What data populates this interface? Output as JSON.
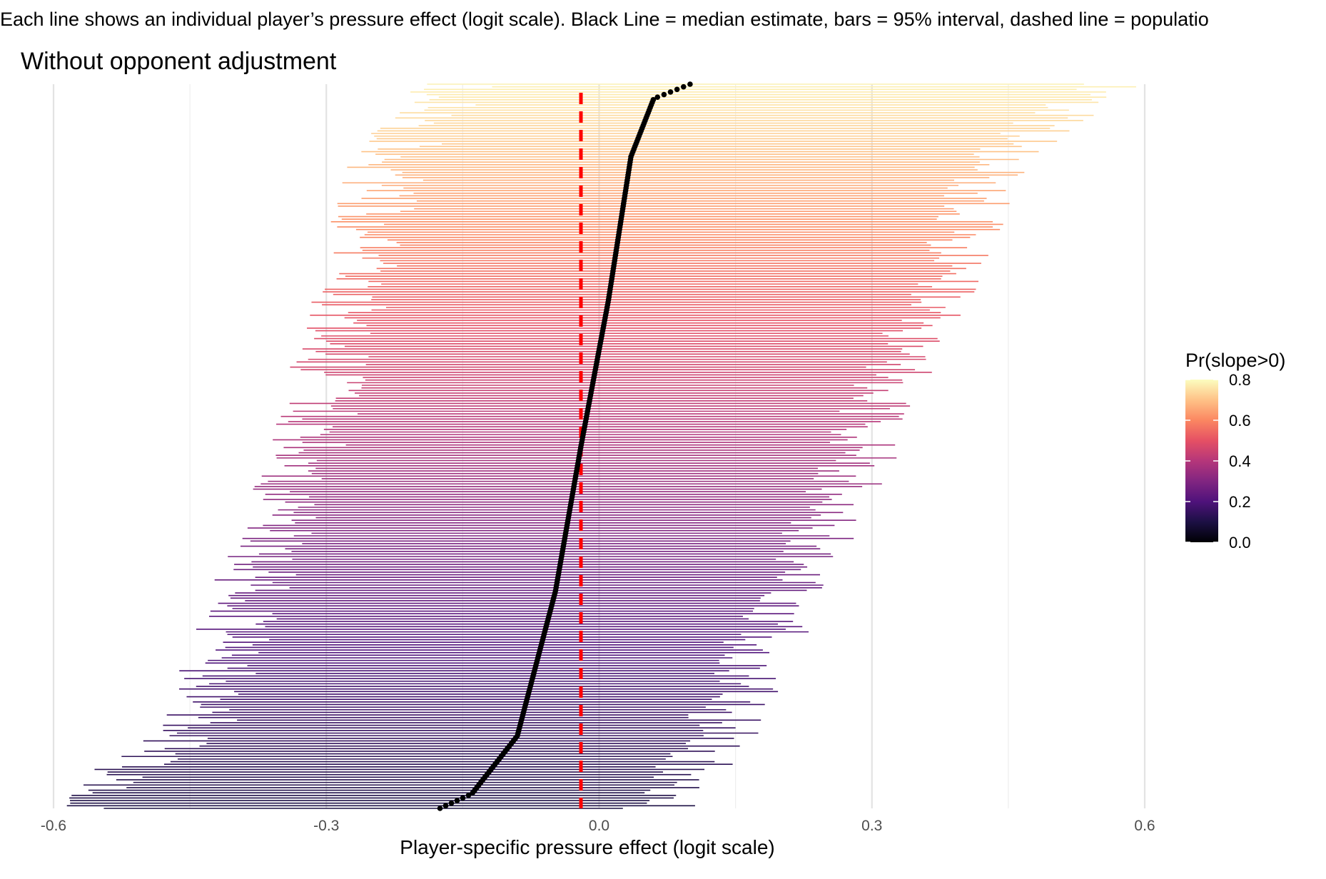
{
  "chart_data": {
    "type": "forest-interval",
    "subtitle": "Each line shows an individual player’s pressure effect (logit scale). Black Line = median estimate, bars = 95% interval, dashed line = populatio",
    "title": "Without opponent adjustment",
    "xlabel": "Player-specific pressure effect (logit scale)",
    "ylabel": "",
    "xlim": [
      -0.6,
      0.6
    ],
    "x_ticks": [
      -0.6,
      -0.3,
      0.0,
      0.3,
      0.6
    ],
    "x_tick_labels": [
      "-0.6",
      "-0.3",
      "0.0",
      "0.3",
      "0.6"
    ],
    "grid": "vertical major and minor lines",
    "population_mean": -0.02,
    "population_line_color": "#ff0000",
    "median_color": "#000000",
    "n_players": 280,
    "order": "sorted by median estimate, lowest at bottom",
    "series_profile": {
      "median_quantiles": [
        [
          0.0,
          -0.175
        ],
        [
          0.02,
          -0.14
        ],
        [
          0.1,
          -0.09
        ],
        [
          0.3,
          -0.048
        ],
        [
          0.5,
          -0.02
        ],
        [
          0.7,
          0.01
        ],
        [
          0.9,
          0.035
        ],
        [
          0.98,
          0.06
        ],
        [
          1.0,
          0.1
        ]
      ],
      "lower_bound_quantiles": [
        [
          0.0,
          -0.58
        ],
        [
          0.1,
          -0.45
        ],
        [
          0.5,
          -0.32
        ],
        [
          0.9,
          -0.23
        ],
        [
          1.0,
          -0.16
        ]
      ],
      "upper_bound_quantiles": [
        [
          0.0,
          0.06
        ],
        [
          0.1,
          0.13
        ],
        [
          0.5,
          0.29
        ],
        [
          0.9,
          0.44
        ],
        [
          1.0,
          0.55
        ]
      ],
      "prob_quantiles": [
        [
          0.0,
          0.1
        ],
        [
          0.3,
          0.24
        ],
        [
          0.5,
          0.38
        ],
        [
          0.7,
          0.52
        ],
        [
          1.0,
          0.78
        ]
      ]
    },
    "legend": {
      "title": "Pr(slope>0)",
      "position": "right",
      "ticks": [
        0.0,
        0.2,
        0.4,
        0.6,
        0.8
      ],
      "tick_labels": [
        "0.0",
        "0.2",
        "0.4",
        "0.6",
        "0.8"
      ],
      "range": [
        0.0,
        0.8
      ],
      "colormap": [
        "#000004",
        "#1c1044",
        "#4f127b",
        "#812581",
        "#b5367a",
        "#e55064",
        "#fb8761",
        "#fec287",
        "#fcfdbf"
      ]
    }
  }
}
